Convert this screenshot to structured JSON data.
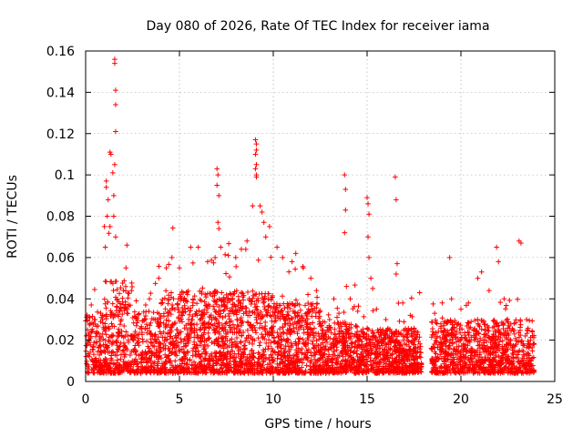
{
  "chart_data": {
    "type": "scatter",
    "title": "Day 080 of 2026, Rate Of TEC Index for receiver iama",
    "xlabel": "GPS time / hours",
    "ylabel": "ROTI / TECUs",
    "xlim": [
      0,
      25
    ],
    "ylim": [
      0,
      0.16
    ],
    "xticks": [
      "0",
      "5",
      "10",
      "15",
      "20",
      "25"
    ],
    "yticks": [
      "0",
      "0.02",
      "0.04",
      "0.06",
      "0.08",
      "0.1",
      "0.12",
      "0.14",
      "0.16"
    ],
    "grid": true,
    "marker": "+",
    "series_color": "#ff0000",
    "gaps_hours": [
      [
        17.9,
        18.4
      ]
    ],
    "points": [
      [
        1.55,
        0.156
      ],
      [
        1.55,
        0.154
      ],
      [
        1.6,
        0.141
      ],
      [
        1.6,
        0.134
      ],
      [
        1.6,
        0.121
      ],
      [
        1.3,
        0.111
      ],
      [
        1.35,
        0.11
      ],
      [
        1.55,
        0.105
      ],
      [
        1.45,
        0.101
      ],
      [
        1.1,
        0.097
      ],
      [
        1.1,
        0.094
      ],
      [
        1.2,
        0.088
      ],
      [
        1.5,
        0.09
      ],
      [
        1.15,
        0.08
      ],
      [
        1.3,
        0.075
      ],
      [
        1.5,
        0.08
      ],
      [
        1.0,
        0.075
      ],
      [
        1.6,
        0.07
      ],
      [
        2.2,
        0.066
      ],
      [
        2.15,
        0.055
      ],
      [
        1.05,
        0.065
      ],
      [
        0.3,
        0.037
      ],
      [
        0.5,
        0.03
      ],
      [
        2.7,
        0.039
      ],
      [
        3.2,
        0.037
      ],
      [
        3.4,
        0.04
      ],
      [
        3.9,
        0.05
      ],
      [
        4.3,
        0.055
      ],
      [
        4.6,
        0.06
      ],
      [
        5.0,
        0.055
      ],
      [
        5.6,
        0.065
      ],
      [
        6.0,
        0.065
      ],
      [
        6.5,
        0.058
      ],
      [
        6.9,
        0.06
      ],
      [
        7.0,
        0.103
      ],
      [
        7.05,
        0.1
      ],
      [
        7.0,
        0.095
      ],
      [
        7.1,
        0.09
      ],
      [
        7.05,
        0.077
      ],
      [
        7.1,
        0.074
      ],
      [
        7.2,
        0.065
      ],
      [
        7.6,
        0.061
      ],
      [
        8.0,
        0.06
      ],
      [
        8.3,
        0.064
      ],
      [
        8.6,
        0.068
      ],
      [
        8.9,
        0.085
      ],
      [
        9.05,
        0.117
      ],
      [
        9.1,
        0.115
      ],
      [
        9.1,
        0.112
      ],
      [
        9.05,
        0.11
      ],
      [
        9.1,
        0.105
      ],
      [
        9.05,
        0.103
      ],
      [
        9.1,
        0.1
      ],
      [
        9.1,
        0.099
      ],
      [
        9.3,
        0.085
      ],
      [
        9.4,
        0.082
      ],
      [
        9.5,
        0.077
      ],
      [
        9.6,
        0.07
      ],
      [
        9.8,
        0.075
      ],
      [
        10.2,
        0.065
      ],
      [
        10.5,
        0.06
      ],
      [
        11.0,
        0.058
      ],
      [
        11.2,
        0.062
      ],
      [
        11.6,
        0.055
      ],
      [
        12.0,
        0.05
      ],
      [
        12.3,
        0.044
      ],
      [
        13.0,
        0.03
      ],
      [
        13.5,
        0.033
      ],
      [
        13.8,
        0.1
      ],
      [
        13.85,
        0.093
      ],
      [
        13.85,
        0.083
      ],
      [
        13.8,
        0.072
      ],
      [
        13.9,
        0.046
      ],
      [
        14.1,
        0.04
      ],
      [
        14.5,
        0.034
      ],
      [
        15.0,
        0.089
      ],
      [
        15.05,
        0.086
      ],
      [
        15.1,
        0.081
      ],
      [
        15.05,
        0.07
      ],
      [
        15.1,
        0.06
      ],
      [
        15.2,
        0.05
      ],
      [
        15.3,
        0.045
      ],
      [
        15.5,
        0.035
      ],
      [
        16.0,
        0.03
      ],
      [
        16.5,
        0.099
      ],
      [
        16.55,
        0.088
      ],
      [
        16.6,
        0.057
      ],
      [
        16.55,
        0.052
      ],
      [
        16.9,
        0.038
      ],
      [
        17.3,
        0.032
      ],
      [
        17.8,
        0.043
      ],
      [
        18.6,
        0.033
      ],
      [
        19.0,
        0.038
      ],
      [
        19.4,
        0.06
      ],
      [
        19.5,
        0.04
      ],
      [
        20.0,
        0.035
      ],
      [
        20.4,
        0.038
      ],
      [
        20.9,
        0.05
      ],
      [
        21.1,
        0.053
      ],
      [
        21.5,
        0.044
      ],
      [
        21.9,
        0.065
      ],
      [
        22.0,
        0.058
      ],
      [
        22.3,
        0.04
      ],
      [
        23.1,
        0.068
      ],
      [
        23.2,
        0.067
      ],
      [
        23.5,
        0.03
      ],
      [
        23.8,
        0.024
      ]
    ]
  }
}
